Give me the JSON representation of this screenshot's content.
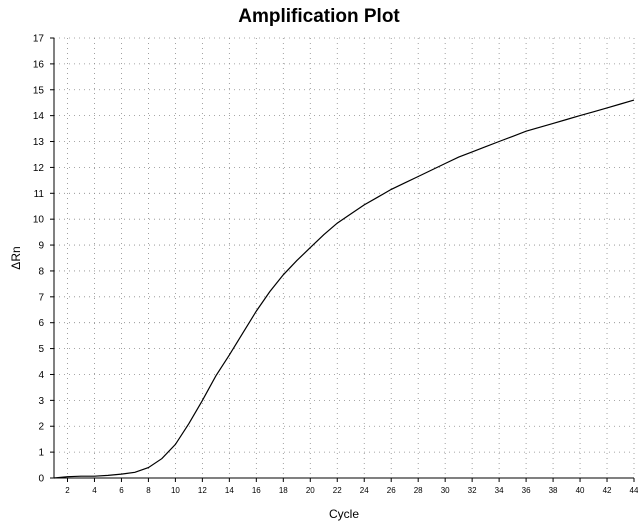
{
  "chart_data": {
    "type": "line",
    "title": "Amplification Plot",
    "xlabel": "Cycle",
    "ylabel": "ΔRn",
    "xlim": [
      1,
      44
    ],
    "ylim": [
      0,
      17
    ],
    "x_ticks": [
      2,
      4,
      6,
      8,
      10,
      12,
      14,
      16,
      18,
      20,
      22,
      24,
      26,
      28,
      30,
      32,
      34,
      36,
      38,
      40,
      42,
      44
    ],
    "y_ticks": [
      0,
      1,
      2,
      3,
      4,
      5,
      6,
      7,
      8,
      9,
      10,
      11,
      12,
      13,
      14,
      15,
      16,
      17
    ],
    "grid": true,
    "series": [
      {
        "x": [
          1,
          2,
          3,
          4,
          5,
          6,
          7,
          8,
          9,
          10,
          11,
          12,
          13,
          14,
          15,
          16,
          17,
          18,
          19,
          20,
          21,
          22,
          23,
          24,
          25,
          26,
          27,
          28,
          29,
          30,
          31,
          32,
          33,
          34,
          35,
          36,
          37,
          38,
          39,
          40,
          41,
          42,
          43,
          44
        ],
        "y": [
          0.0,
          0.05,
          0.07,
          0.07,
          0.1,
          0.15,
          0.22,
          0.4,
          0.75,
          1.3,
          2.1,
          3.0,
          3.95,
          4.75,
          5.6,
          6.45,
          7.2,
          7.85,
          8.4,
          8.9,
          9.4,
          9.85,
          10.2,
          10.55,
          10.85,
          11.15,
          11.4,
          11.65,
          11.9,
          12.15,
          12.4,
          12.6,
          12.8,
          13.0,
          13.2,
          13.4,
          13.55,
          13.7,
          13.85,
          14.0,
          14.15,
          14.3,
          14.45,
          14.6
        ]
      }
    ]
  }
}
